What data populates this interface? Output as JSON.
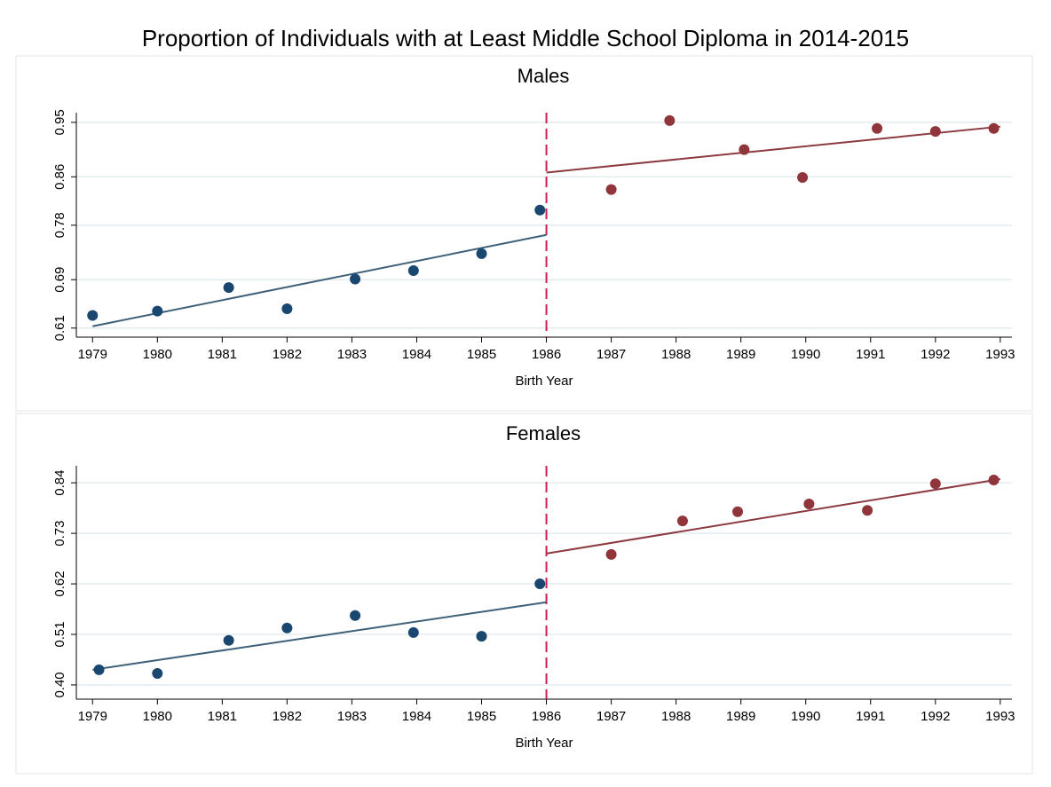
{
  "title": "Proportion of Individuals with at Least Middle School Diploma in 2014-2015",
  "chart_data": [
    {
      "type": "scatter",
      "title": "Males",
      "x_label": "Birth Year",
      "xlim": [
        1978.75,
        1993.18
      ],
      "xticks": [
        1979,
        1980,
        1981,
        1982,
        1983,
        1984,
        1985,
        1986,
        1987,
        1988,
        1989,
        1990,
        1991,
        1992,
        1993
      ],
      "ylim": [
        0.595,
        0.966
      ],
      "yticks": [
        0.61,
        0.69,
        0.78,
        0.86,
        0.95
      ],
      "grid": true,
      "cutoff": 1986,
      "cutoff_color": "#d01c50",
      "series": [
        {
          "color": "#1a476f",
          "x": [
            1979.0,
            1980.0,
            1981.1,
            1982.0,
            1983.05,
            1983.95,
            1985.0,
            1985.9
          ],
          "values": [
            0.631,
            0.638,
            0.677,
            0.642,
            0.691,
            0.705,
            0.733,
            0.805
          ],
          "fit": {
            "color": "#3f6079",
            "x": [
              1979,
              1986
            ],
            "values": [
              0.613,
              0.764
            ]
          }
        },
        {
          "color": "#90353b",
          "x": [
            1987.0,
            1987.9,
            1989.05,
            1989.95,
            1991.1,
            1992.0,
            1992.9
          ],
          "values": [
            0.839,
            0.953,
            0.905,
            0.859,
            0.94,
            0.935,
            0.94
          ],
          "fit": {
            "color": "#8d3a40",
            "x": [
              1986,
              1993
            ],
            "values": [
              0.867,
              0.943
            ]
          }
        }
      ]
    },
    {
      "type": "scatter",
      "title": "Females",
      "x_label": "Birth Year",
      "xlim": [
        1978.75,
        1993.18
      ],
      "xticks": [
        1979,
        1980,
        1981,
        1982,
        1983,
        1984,
        1985,
        1986,
        1987,
        1988,
        1989,
        1990,
        1991,
        1992,
        1993
      ],
      "ylim": [
        0.369,
        0.877
      ],
      "yticks": [
        {
          "value": 0.4,
          "label": "0.40"
        },
        0.51,
        0.62,
        0.73,
        0.84
      ],
      "grid": true,
      "cutoff": 1986,
      "cutoff_color": "#d01c50",
      "series": [
        {
          "color": "#1a476f",
          "x": [
            1979.1,
            1980.0,
            1981.1,
            1982.0,
            1983.05,
            1983.95,
            1985.0,
            1985.9
          ],
          "values": [
            0.433,
            0.425,
            0.497,
            0.524,
            0.551,
            0.514,
            0.506,
            0.62
          ],
          "fit": {
            "color": "#3f6079",
            "x": [
              1979,
              1986
            ],
            "values": [
              0.433,
              0.58
            ]
          }
        },
        {
          "color": "#90353b",
          "x": [
            1987.0,
            1988.1,
            1988.95,
            1990.05,
            1990.95,
            1992.0,
            1992.9
          ],
          "values": [
            0.684,
            0.757,
            0.777,
            0.794,
            0.78,
            0.838,
            0.846
          ],
          "fit": {
            "color": "#8d3a40",
            "x": [
              1986,
              1993
            ],
            "values": [
              0.686,
              0.848
            ]
          }
        }
      ]
    }
  ]
}
